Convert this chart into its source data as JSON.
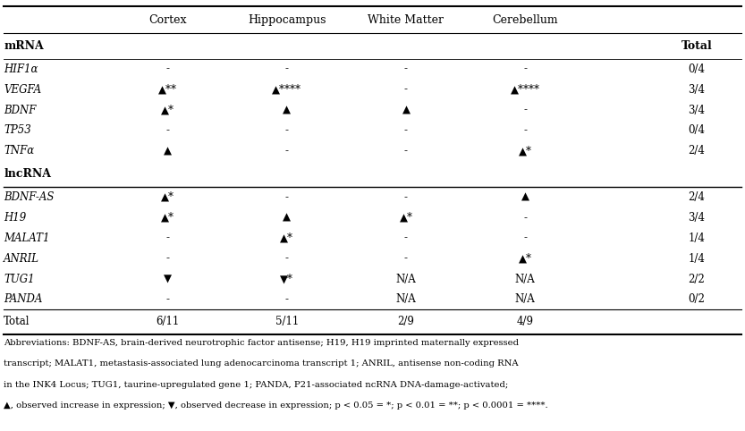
{
  "col_headers": [
    "Cortex",
    "Hippocampus",
    "White Matter",
    "Cerebellum"
  ],
  "section_mrna_label": "mRNA",
  "section_lncrna_label": "lncRNA",
  "col_header_total": "Total",
  "mrna_rows": [
    {
      "gene": "HIF1α",
      "cortex": "-",
      "hippo": "-",
      "wm": "-",
      "cereb": "-",
      "total": "0/4"
    },
    {
      "gene": "VEGFA",
      "cortex": "▲**",
      "hippo": "▲****",
      "wm": "-",
      "cereb": "▲****",
      "total": "3/4"
    },
    {
      "gene": "BDNF",
      "cortex": "▲*",
      "hippo": "▲",
      "wm": "▲",
      "cereb": "-",
      "total": "3/4"
    },
    {
      "gene": "TP53",
      "cortex": "-",
      "hippo": "-",
      "wm": "-",
      "cereb": "-",
      "total": "0/4"
    },
    {
      "gene": "TNFα",
      "cortex": "▲",
      "hippo": "-",
      "wm": "-",
      "cereb": "▲*",
      "total": "2/4"
    }
  ],
  "lncrna_rows": [
    {
      "gene": "BDNF-AS",
      "cortex": "▲*",
      "hippo": "-",
      "wm": "-",
      "cereb": "▲",
      "total": "2/4"
    },
    {
      "gene": "H19",
      "cortex": "▲*",
      "hippo": "▲",
      "wm": "▲*",
      "cereb": "-",
      "total": "3/4"
    },
    {
      "gene": "MALAT1",
      "cortex": "-",
      "hippo": "▲*",
      "wm": "-",
      "cereb": "-",
      "total": "1/4"
    },
    {
      "gene": "ANRIL",
      "cortex": "-",
      "hippo": "-",
      "wm": "-",
      "cereb": "▲*",
      "total": "1/4"
    },
    {
      "gene": "TUG1",
      "cortex": "▼",
      "hippo": "▼*",
      "wm": "N/A",
      "cereb": "N/A",
      "total": "2/2"
    },
    {
      "gene": "PANDA",
      "cortex": "-",
      "hippo": "-",
      "wm": "N/A",
      "cereb": "N/A",
      "total": "0/2"
    }
  ],
  "total_row": {
    "label": "Total",
    "cortex": "6/11",
    "hippo": "5/11",
    "wm": "2/9",
    "cereb": "4/9"
  },
  "footnote_lines": [
    "Abbreviations: BDNF-AS, brain-derived neurotrophic factor antisense; H19, H19 imprinted maternally expressed",
    "transcript; MALAT1, metastasis-associated lung adenocarcinoma transcript 1; ANRIL, antisense non-coding RNA",
    "in the INK4 Locus; TUG1, taurine-upregulated gene 1; PANDA, P21-associated ncRNA DNA-damage-activated;",
    "▲, observed increase in expression; ▼, observed decrease in expression; p < 0.05 = *; p < 0.01 = **; p < 0.0001 = ****."
  ],
  "bg_color": "#ffffff",
  "text_color": "#000000",
  "font_family": "serif",
  "font_size_header": 9.0,
  "font_size_body": 8.5,
  "font_size_section": 9.0,
  "font_size_footnote": 7.2
}
